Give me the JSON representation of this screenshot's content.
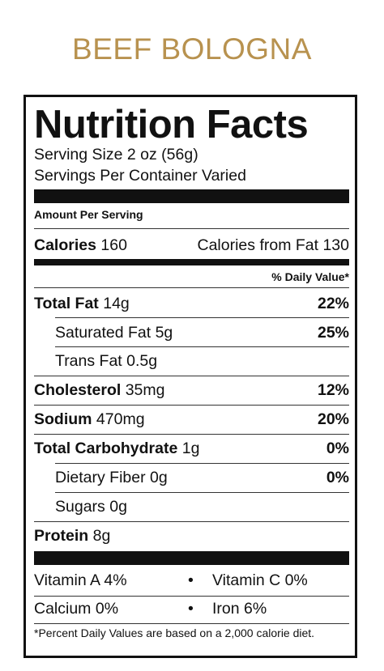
{
  "product_name": "BEEF BOLOGNA",
  "label": {
    "title": "Nutrition Facts",
    "serving_size": "Serving Size 2 oz (56g)",
    "servings_per_container": "Servings Per Container Varied",
    "amount_per_serving": "Amount Per Serving",
    "calories_label": "Calories",
    "calories_value": "160",
    "calories_from_fat": "Calories from Fat 130",
    "daily_value_header": "% Daily Value*",
    "nutrients": [
      {
        "label": "Total Fat",
        "amount": "14g",
        "dv": "22%"
      },
      {
        "label": "Saturated Fat",
        "amount": "5g",
        "dv": "25%"
      },
      {
        "label": "Trans Fat",
        "amount": "0.5g",
        "dv": ""
      },
      {
        "label": "Cholesterol",
        "amount": "35mg",
        "dv": "12%"
      },
      {
        "label": "Sodium",
        "amount": "470mg",
        "dv": "20%"
      },
      {
        "label": "Total Carbohydrate",
        "amount": "1g",
        "dv": "0%"
      },
      {
        "label": "Dietary Fiber",
        "amount": "0g",
        "dv": "0%"
      },
      {
        "label": "Sugars",
        "amount": "0g",
        "dv": ""
      },
      {
        "label": "Protein",
        "amount": "8g",
        "dv": ""
      }
    ],
    "vitamins": [
      {
        "left": "Vitamin A 4%",
        "bullet": "•",
        "right": "Vitamin C 0%"
      },
      {
        "left": "Calcium 0%",
        "bullet": "•",
        "right": "Iron 6%"
      }
    ],
    "footnote": "*Percent Daily Values are based on a 2,000 calorie diet."
  },
  "colors": {
    "title_gold": "#b8924f",
    "ink": "#111111"
  }
}
